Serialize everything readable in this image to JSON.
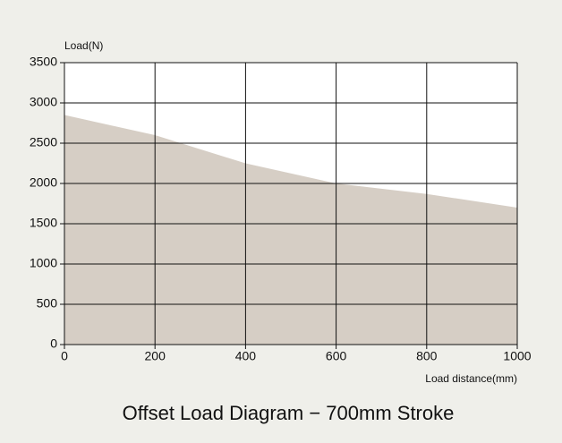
{
  "chart_data": {
    "type": "area",
    "title": "Offset Load Diagram − 700mm Stroke",
    "y_label": "Load(N)",
    "x_label": "Load distance(mm)",
    "x": [
      0,
      200,
      400,
      600,
      800,
      1000
    ],
    "series": [
      {
        "name": null,
        "color": "#d6cec5",
        "values": [
          2850,
          2600,
          2250,
          2000,
          1870,
          1700
        ]
      }
    ],
    "xlim": [
      0,
      1000
    ],
    "xticks": [
      0,
      200,
      400,
      600,
      800,
      1000
    ],
    "ylim": [
      0,
      3500
    ],
    "yticks": [
      0,
      500,
      1000,
      1500,
      2000,
      2500,
      3000,
      3500
    ],
    "grid": true
  }
}
